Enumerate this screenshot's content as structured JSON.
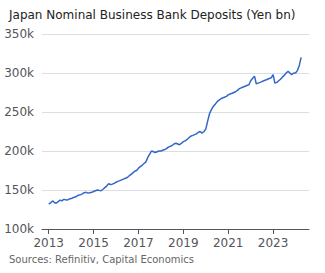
{
  "chart_data": {
    "type": "line",
    "title": "Japan Nominal Business Bank Deposits (Yen bn)",
    "annotations": [
      "Sources: Refinitiv, Capital Economics"
    ],
    "color": "#3367c8",
    "grid": true,
    "xlim": [
      2012.7,
      2024.6
    ],
    "xticks": [
      2013,
      2015,
      2017,
      2019,
      2021,
      2023
    ],
    "ylim": [
      100000,
      350000
    ],
    "yticks": [
      {
        "value": 100000,
        "label": "100k"
      },
      {
        "value": 150000,
        "label": "150k"
      },
      {
        "value": 200000,
        "label": "200k"
      },
      {
        "value": 250000,
        "label": "250k"
      },
      {
        "value": 300000,
        "label": "300k"
      },
      {
        "value": 350000,
        "label": "350k"
      }
    ],
    "x": [
      2013.0,
      2013.08,
      2013.17,
      2013.25,
      2013.33,
      2013.42,
      2013.5,
      2013.58,
      2013.67,
      2013.75,
      2013.83,
      2013.92,
      2014.0,
      2014.08,
      2014.17,
      2014.25,
      2014.33,
      2014.42,
      2014.5,
      2014.58,
      2014.67,
      2014.75,
      2014.83,
      2014.92,
      2015.0,
      2015.08,
      2015.17,
      2015.25,
      2015.33,
      2015.42,
      2015.5,
      2015.58,
      2015.67,
      2015.75,
      2015.83,
      2015.92,
      2016.0,
      2016.08,
      2016.17,
      2016.25,
      2016.33,
      2016.42,
      2016.5,
      2016.58,
      2016.67,
      2016.75,
      2016.83,
      2016.92,
      2017.0,
      2017.08,
      2017.17,
      2017.25,
      2017.33,
      2017.42,
      2017.5,
      2017.58,
      2017.67,
      2017.75,
      2017.83,
      2017.92,
      2018.0,
      2018.08,
      2018.17,
      2018.25,
      2018.33,
      2018.42,
      2018.5,
      2018.58,
      2018.67,
      2018.75,
      2018.83,
      2018.92,
      2019.0,
      2019.08,
      2019.17,
      2019.25,
      2019.33,
      2019.42,
      2019.5,
      2019.58,
      2019.67,
      2019.75,
      2019.83,
      2019.92,
      2020.0,
      2020.08,
      2020.17,
      2020.25,
      2020.33,
      2020.42,
      2020.5,
      2020.58,
      2020.67,
      2020.75,
      2020.83,
      2020.92,
      2021.0,
      2021.08,
      2021.17,
      2021.25,
      2021.33,
      2021.42,
      2021.5,
      2021.58,
      2021.67,
      2021.75,
      2021.83,
      2021.92,
      2022.0,
      2022.08,
      2022.17,
      2022.25,
      2022.33,
      2022.42,
      2022.5,
      2022.58,
      2022.67,
      2022.75,
      2022.83,
      2022.92,
      2023.0,
      2023.08,
      2023.17,
      2023.25,
      2023.33,
      2023.42,
      2023.5,
      2023.58,
      2023.67,
      2023.75,
      2023.83,
      2023.92,
      2024.0,
      2024.08,
      2024.17,
      2024.25
    ],
    "values": [
      132000,
      133500,
      136000,
      134000,
      133000,
      135000,
      137000,
      136000,
      138000,
      137500,
      137000,
      138500,
      139000,
      140000,
      141000,
      142000,
      143500,
      144000,
      145000,
      146500,
      147000,
      146000,
      146500,
      147000,
      148000,
      149000,
      150000,
      149500,
      149000,
      151000,
      153000,
      155000,
      158000,
      157000,
      157500,
      158500,
      160000,
      161000,
      162000,
      163000,
      164000,
      165000,
      166000,
      168000,
      170000,
      172000,
      174000,
      175000,
      178000,
      180000,
      182000,
      184000,
      186000,
      192000,
      196000,
      200000,
      199000,
      198000,
      199000,
      200000,
      200000,
      201000,
      202000,
      203000,
      205000,
      206000,
      207000,
      209000,
      210000,
      209000,
      208000,
      210000,
      212000,
      213000,
      215000,
      217000,
      219000,
      220000,
      221000,
      222000,
      224000,
      225000,
      223000,
      225000,
      228000,
      238000,
      248000,
      253000,
      257000,
      260000,
      263000,
      265000,
      267000,
      268000,
      269000,
      270000,
      272000,
      273000,
      274000,
      275000,
      276000,
      278000,
      280000,
      281000,
      282000,
      283000,
      284000,
      285000,
      290000,
      293000,
      296000,
      286000,
      287000,
      288000,
      289000,
      290000,
      291000,
      292000,
      293000,
      294000,
      298000,
      287000,
      288000,
      290000,
      292000,
      295000,
      297000,
      300000,
      302000,
      300000,
      298000,
      300000,
      300000,
      303000,
      310000,
      320000
    ]
  }
}
